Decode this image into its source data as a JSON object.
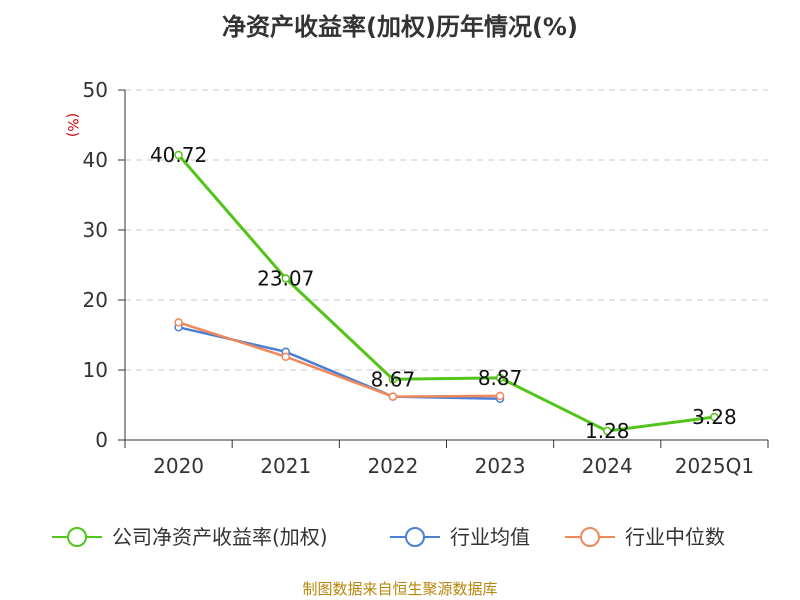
{
  "chart_data": {
    "type": "line",
    "title": "净资产收益率(加权)历年情况(%)",
    "ylabel": "(%)",
    "xlabel": "",
    "categories": [
      "2020",
      "2021",
      "2022",
      "2023",
      "2024",
      "2025Q1"
    ],
    "ylim": [
      0,
      50
    ],
    "yticks": [
      0,
      10,
      20,
      30,
      40,
      50
    ],
    "grid": true,
    "legend_position": "bottom",
    "series": [
      {
        "name": "公司净资产收益率(加权)",
        "color": "#52c41a",
        "values": [
          40.72,
          23.07,
          8.67,
          8.87,
          1.28,
          3.28
        ],
        "labels": [
          "40.72",
          "23.07",
          "8.67",
          "8.87",
          "1.28",
          "3.28"
        ]
      },
      {
        "name": "行业均值",
        "color": "#4a7fd6",
        "values": [
          16.1,
          12.6,
          6.2,
          5.9,
          null,
          null
        ]
      },
      {
        "name": "行业中位数",
        "color": "#f0885a",
        "values": [
          16.8,
          11.9,
          6.2,
          6.3,
          null,
          null
        ]
      }
    ]
  },
  "source": "制图数据来自恒生聚源数据库"
}
